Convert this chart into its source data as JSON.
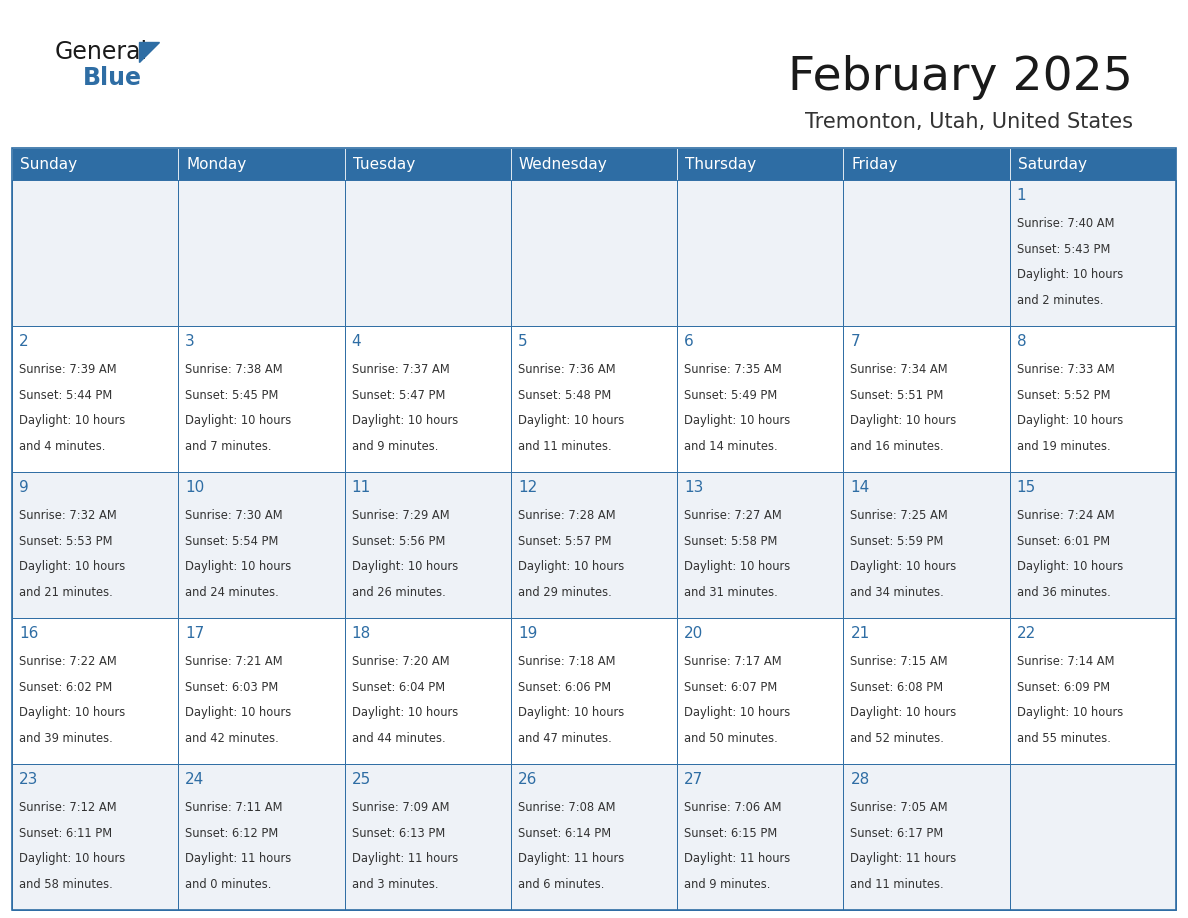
{
  "title": "February 2025",
  "subtitle": "Tremonton, Utah, United States",
  "header_bg": "#2e6da4",
  "header_text": "#ffffff",
  "cell_bg_even": "#eef2f7",
  "cell_bg_odd": "#ffffff",
  "border_color": "#2e6da4",
  "day_headers": [
    "Sunday",
    "Monday",
    "Tuesday",
    "Wednesday",
    "Thursday",
    "Friday",
    "Saturday"
  ],
  "title_color": "#1a1a1a",
  "subtitle_color": "#333333",
  "day_number_color": "#2e6da4",
  "cell_text_color": "#333333",
  "logo_general_color": "#1a1a1a",
  "logo_blue_color": "#2e6da4",
  "logo_triangle_color": "#2e6da4",
  "calendar": [
    [
      null,
      null,
      null,
      null,
      null,
      null,
      {
        "day": "1",
        "sunrise": "7:40 AM",
        "sunset": "5:43 PM",
        "daylight1": "Daylight: 10 hours",
        "daylight2": "and 2 minutes."
      }
    ],
    [
      {
        "day": "2",
        "sunrise": "7:39 AM",
        "sunset": "5:44 PM",
        "daylight1": "Daylight: 10 hours",
        "daylight2": "and 4 minutes."
      },
      {
        "day": "3",
        "sunrise": "7:38 AM",
        "sunset": "5:45 PM",
        "daylight1": "Daylight: 10 hours",
        "daylight2": "and 7 minutes."
      },
      {
        "day": "4",
        "sunrise": "7:37 AM",
        "sunset": "5:47 PM",
        "daylight1": "Daylight: 10 hours",
        "daylight2": "and 9 minutes."
      },
      {
        "day": "5",
        "sunrise": "7:36 AM",
        "sunset": "5:48 PM",
        "daylight1": "Daylight: 10 hours",
        "daylight2": "and 11 minutes."
      },
      {
        "day": "6",
        "sunrise": "7:35 AM",
        "sunset": "5:49 PM",
        "daylight1": "Daylight: 10 hours",
        "daylight2": "and 14 minutes."
      },
      {
        "day": "7",
        "sunrise": "7:34 AM",
        "sunset": "5:51 PM",
        "daylight1": "Daylight: 10 hours",
        "daylight2": "and 16 minutes."
      },
      {
        "day": "8",
        "sunrise": "7:33 AM",
        "sunset": "5:52 PM",
        "daylight1": "Daylight: 10 hours",
        "daylight2": "and 19 minutes."
      }
    ],
    [
      {
        "day": "9",
        "sunrise": "7:32 AM",
        "sunset": "5:53 PM",
        "daylight1": "Daylight: 10 hours",
        "daylight2": "and 21 minutes."
      },
      {
        "day": "10",
        "sunrise": "7:30 AM",
        "sunset": "5:54 PM",
        "daylight1": "Daylight: 10 hours",
        "daylight2": "and 24 minutes."
      },
      {
        "day": "11",
        "sunrise": "7:29 AM",
        "sunset": "5:56 PM",
        "daylight1": "Daylight: 10 hours",
        "daylight2": "and 26 minutes."
      },
      {
        "day": "12",
        "sunrise": "7:28 AM",
        "sunset": "5:57 PM",
        "daylight1": "Daylight: 10 hours",
        "daylight2": "and 29 minutes."
      },
      {
        "day": "13",
        "sunrise": "7:27 AM",
        "sunset": "5:58 PM",
        "daylight1": "Daylight: 10 hours",
        "daylight2": "and 31 minutes."
      },
      {
        "day": "14",
        "sunrise": "7:25 AM",
        "sunset": "5:59 PM",
        "daylight1": "Daylight: 10 hours",
        "daylight2": "and 34 minutes."
      },
      {
        "day": "15",
        "sunrise": "7:24 AM",
        "sunset": "6:01 PM",
        "daylight1": "Daylight: 10 hours",
        "daylight2": "and 36 minutes."
      }
    ],
    [
      {
        "day": "16",
        "sunrise": "7:22 AM",
        "sunset": "6:02 PM",
        "daylight1": "Daylight: 10 hours",
        "daylight2": "and 39 minutes."
      },
      {
        "day": "17",
        "sunrise": "7:21 AM",
        "sunset": "6:03 PM",
        "daylight1": "Daylight: 10 hours",
        "daylight2": "and 42 minutes."
      },
      {
        "day": "18",
        "sunrise": "7:20 AM",
        "sunset": "6:04 PM",
        "daylight1": "Daylight: 10 hours",
        "daylight2": "and 44 minutes."
      },
      {
        "day": "19",
        "sunrise": "7:18 AM",
        "sunset": "6:06 PM",
        "daylight1": "Daylight: 10 hours",
        "daylight2": "and 47 minutes."
      },
      {
        "day": "20",
        "sunrise": "7:17 AM",
        "sunset": "6:07 PM",
        "daylight1": "Daylight: 10 hours",
        "daylight2": "and 50 minutes."
      },
      {
        "day": "21",
        "sunrise": "7:15 AM",
        "sunset": "6:08 PM",
        "daylight1": "Daylight: 10 hours",
        "daylight2": "and 52 minutes."
      },
      {
        "day": "22",
        "sunrise": "7:14 AM",
        "sunset": "6:09 PM",
        "daylight1": "Daylight: 10 hours",
        "daylight2": "and 55 minutes."
      }
    ],
    [
      {
        "day": "23",
        "sunrise": "7:12 AM",
        "sunset": "6:11 PM",
        "daylight1": "Daylight: 10 hours",
        "daylight2": "and 58 minutes."
      },
      {
        "day": "24",
        "sunrise": "7:11 AM",
        "sunset": "6:12 PM",
        "daylight1": "Daylight: 11 hours",
        "daylight2": "and 0 minutes."
      },
      {
        "day": "25",
        "sunrise": "7:09 AM",
        "sunset": "6:13 PM",
        "daylight1": "Daylight: 11 hours",
        "daylight2": "and 3 minutes."
      },
      {
        "day": "26",
        "sunrise": "7:08 AM",
        "sunset": "6:14 PM",
        "daylight1": "Daylight: 11 hours",
        "daylight2": "and 6 minutes."
      },
      {
        "day": "27",
        "sunrise": "7:06 AM",
        "sunset": "6:15 PM",
        "daylight1": "Daylight: 11 hours",
        "daylight2": "and 9 minutes."
      },
      {
        "day": "28",
        "sunrise": "7:05 AM",
        "sunset": "6:17 PM",
        "daylight1": "Daylight: 11 hours",
        "daylight2": "and 11 minutes."
      },
      null
    ]
  ]
}
